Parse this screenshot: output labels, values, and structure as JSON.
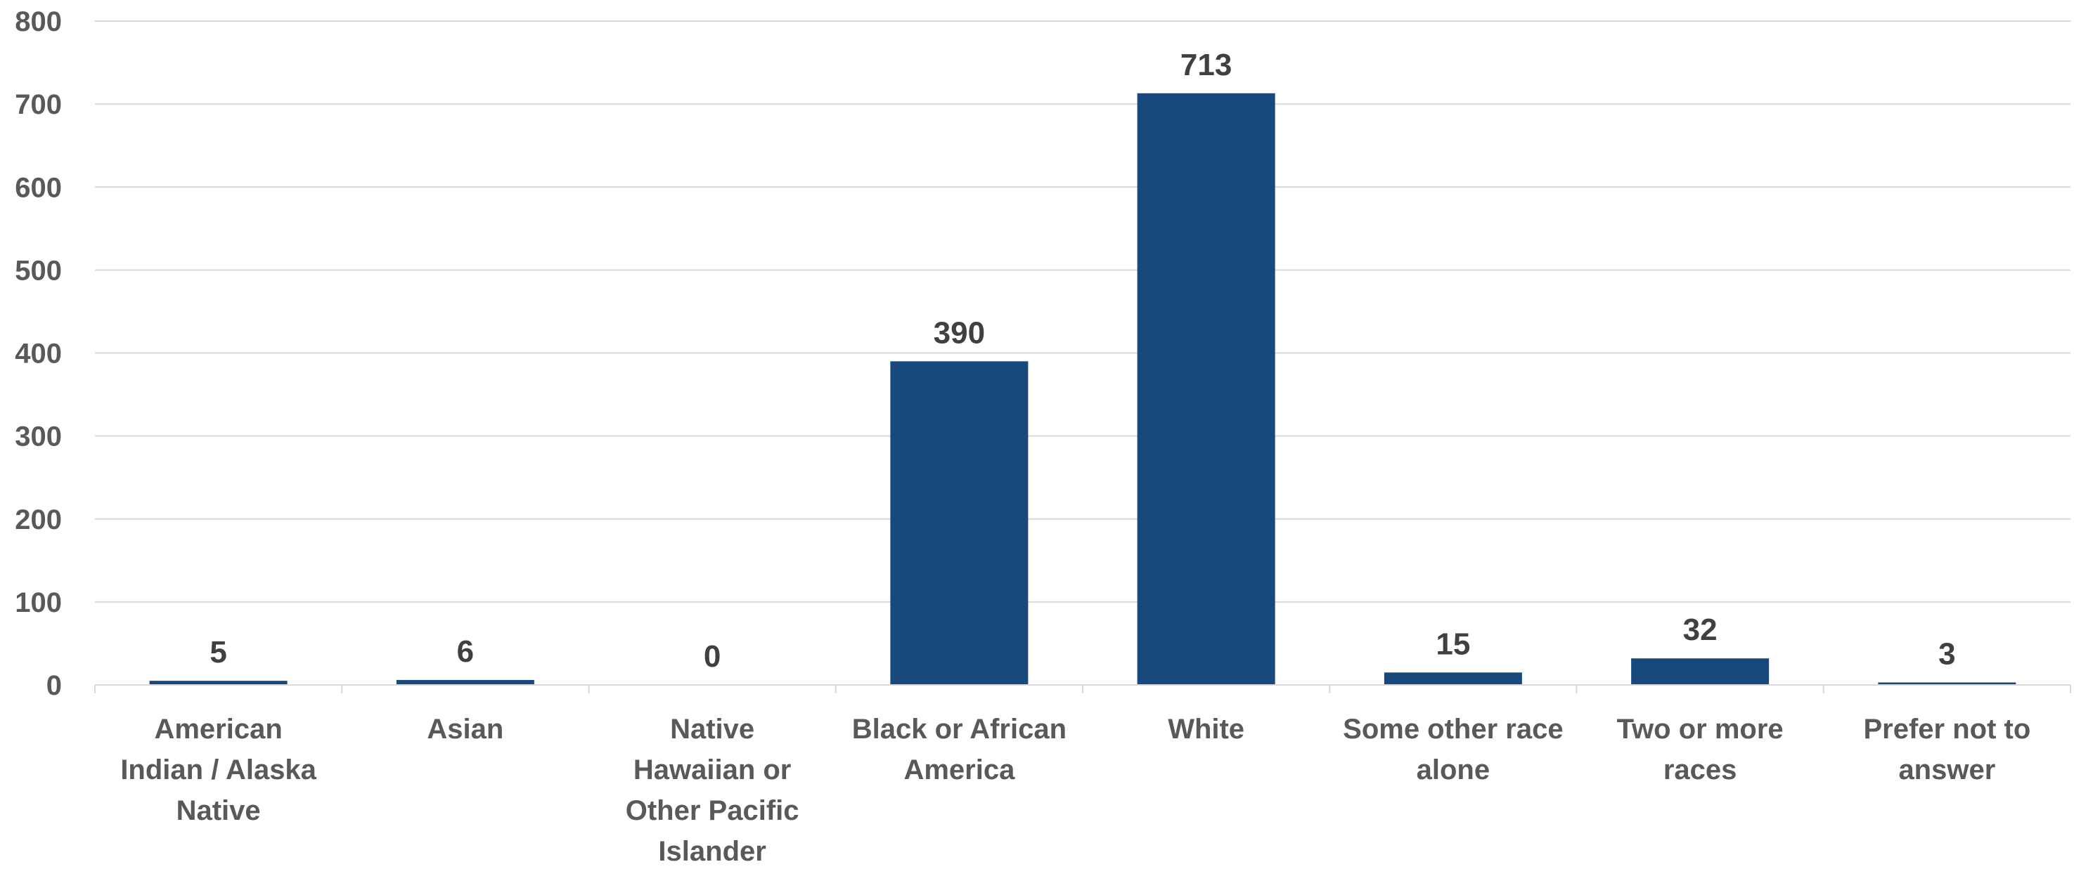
{
  "chart_data": {
    "type": "bar",
    "title": "",
    "xlabel": "",
    "ylabel": "",
    "categories": [
      [
        "American",
        "Indian / Alaska",
        "Native"
      ],
      [
        "Asian"
      ],
      [
        "Native",
        "Hawaiian or",
        "Other Pacific",
        "Islander"
      ],
      [
        "Black or African",
        "America"
      ],
      [
        "White"
      ],
      [
        "Some other race",
        "alone"
      ],
      [
        "Two or more",
        "races"
      ],
      [
        "Prefer not to",
        "answer"
      ]
    ],
    "values": [
      5,
      6,
      0,
      390,
      713,
      15,
      32,
      3
    ],
    "data_labels": [
      "5",
      "6",
      "0",
      "390",
      "713",
      "15",
      "32",
      "3"
    ],
    "ylim": [
      0,
      800
    ],
    "yticks": [
      "0",
      "100",
      "200",
      "300",
      "400",
      "500",
      "600",
      "700",
      "800"
    ],
    "grid": true,
    "legend": "none",
    "bar_color": "#17497c"
  }
}
